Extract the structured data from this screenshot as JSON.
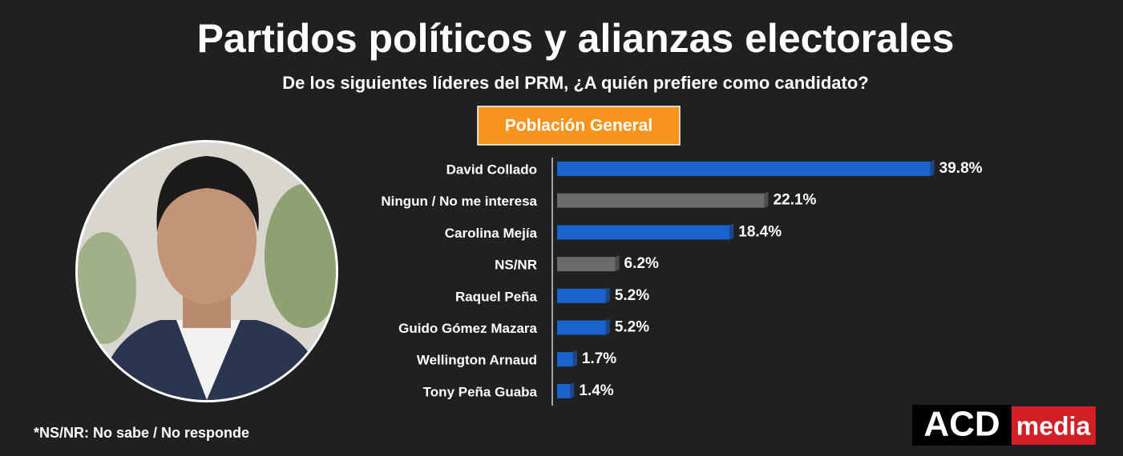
{
  "chart_data": {
    "type": "bar",
    "orientation": "horizontal",
    "title": "Partidos políticos y alianzas electorales",
    "subtitle": "De los siguientes líderes del PRM, ¿A quién prefiere como candidato?",
    "badge": "Población General",
    "categories": [
      "David Collado",
      "Ningun / No me interesa",
      "Carolina Mejía",
      "NS/NR",
      "Raquel Peña",
      "Guido Gómez Mazara",
      "Wellington Arnaud",
      "Tony Peña Guaba"
    ],
    "values": [
      39.8,
      22.1,
      18.4,
      6.2,
      5.2,
      5.2,
      1.7,
      1.4
    ],
    "value_labels": [
      "39.8%",
      "22.1%",
      "18.4%",
      "6.2%",
      "5.2%",
      "5.2%",
      "1.7%",
      "1.4%"
    ],
    "colors": [
      "#1a63cc",
      "#6a6a6a",
      "#1a63cc",
      "#6a6a6a",
      "#1a63cc",
      "#1a63cc",
      "#1a63cc",
      "#1a63cc"
    ],
    "footnote": "*NS/NR: No sabe / No responde",
    "logo": {
      "left": "ACD",
      "right": "media"
    }
  }
}
